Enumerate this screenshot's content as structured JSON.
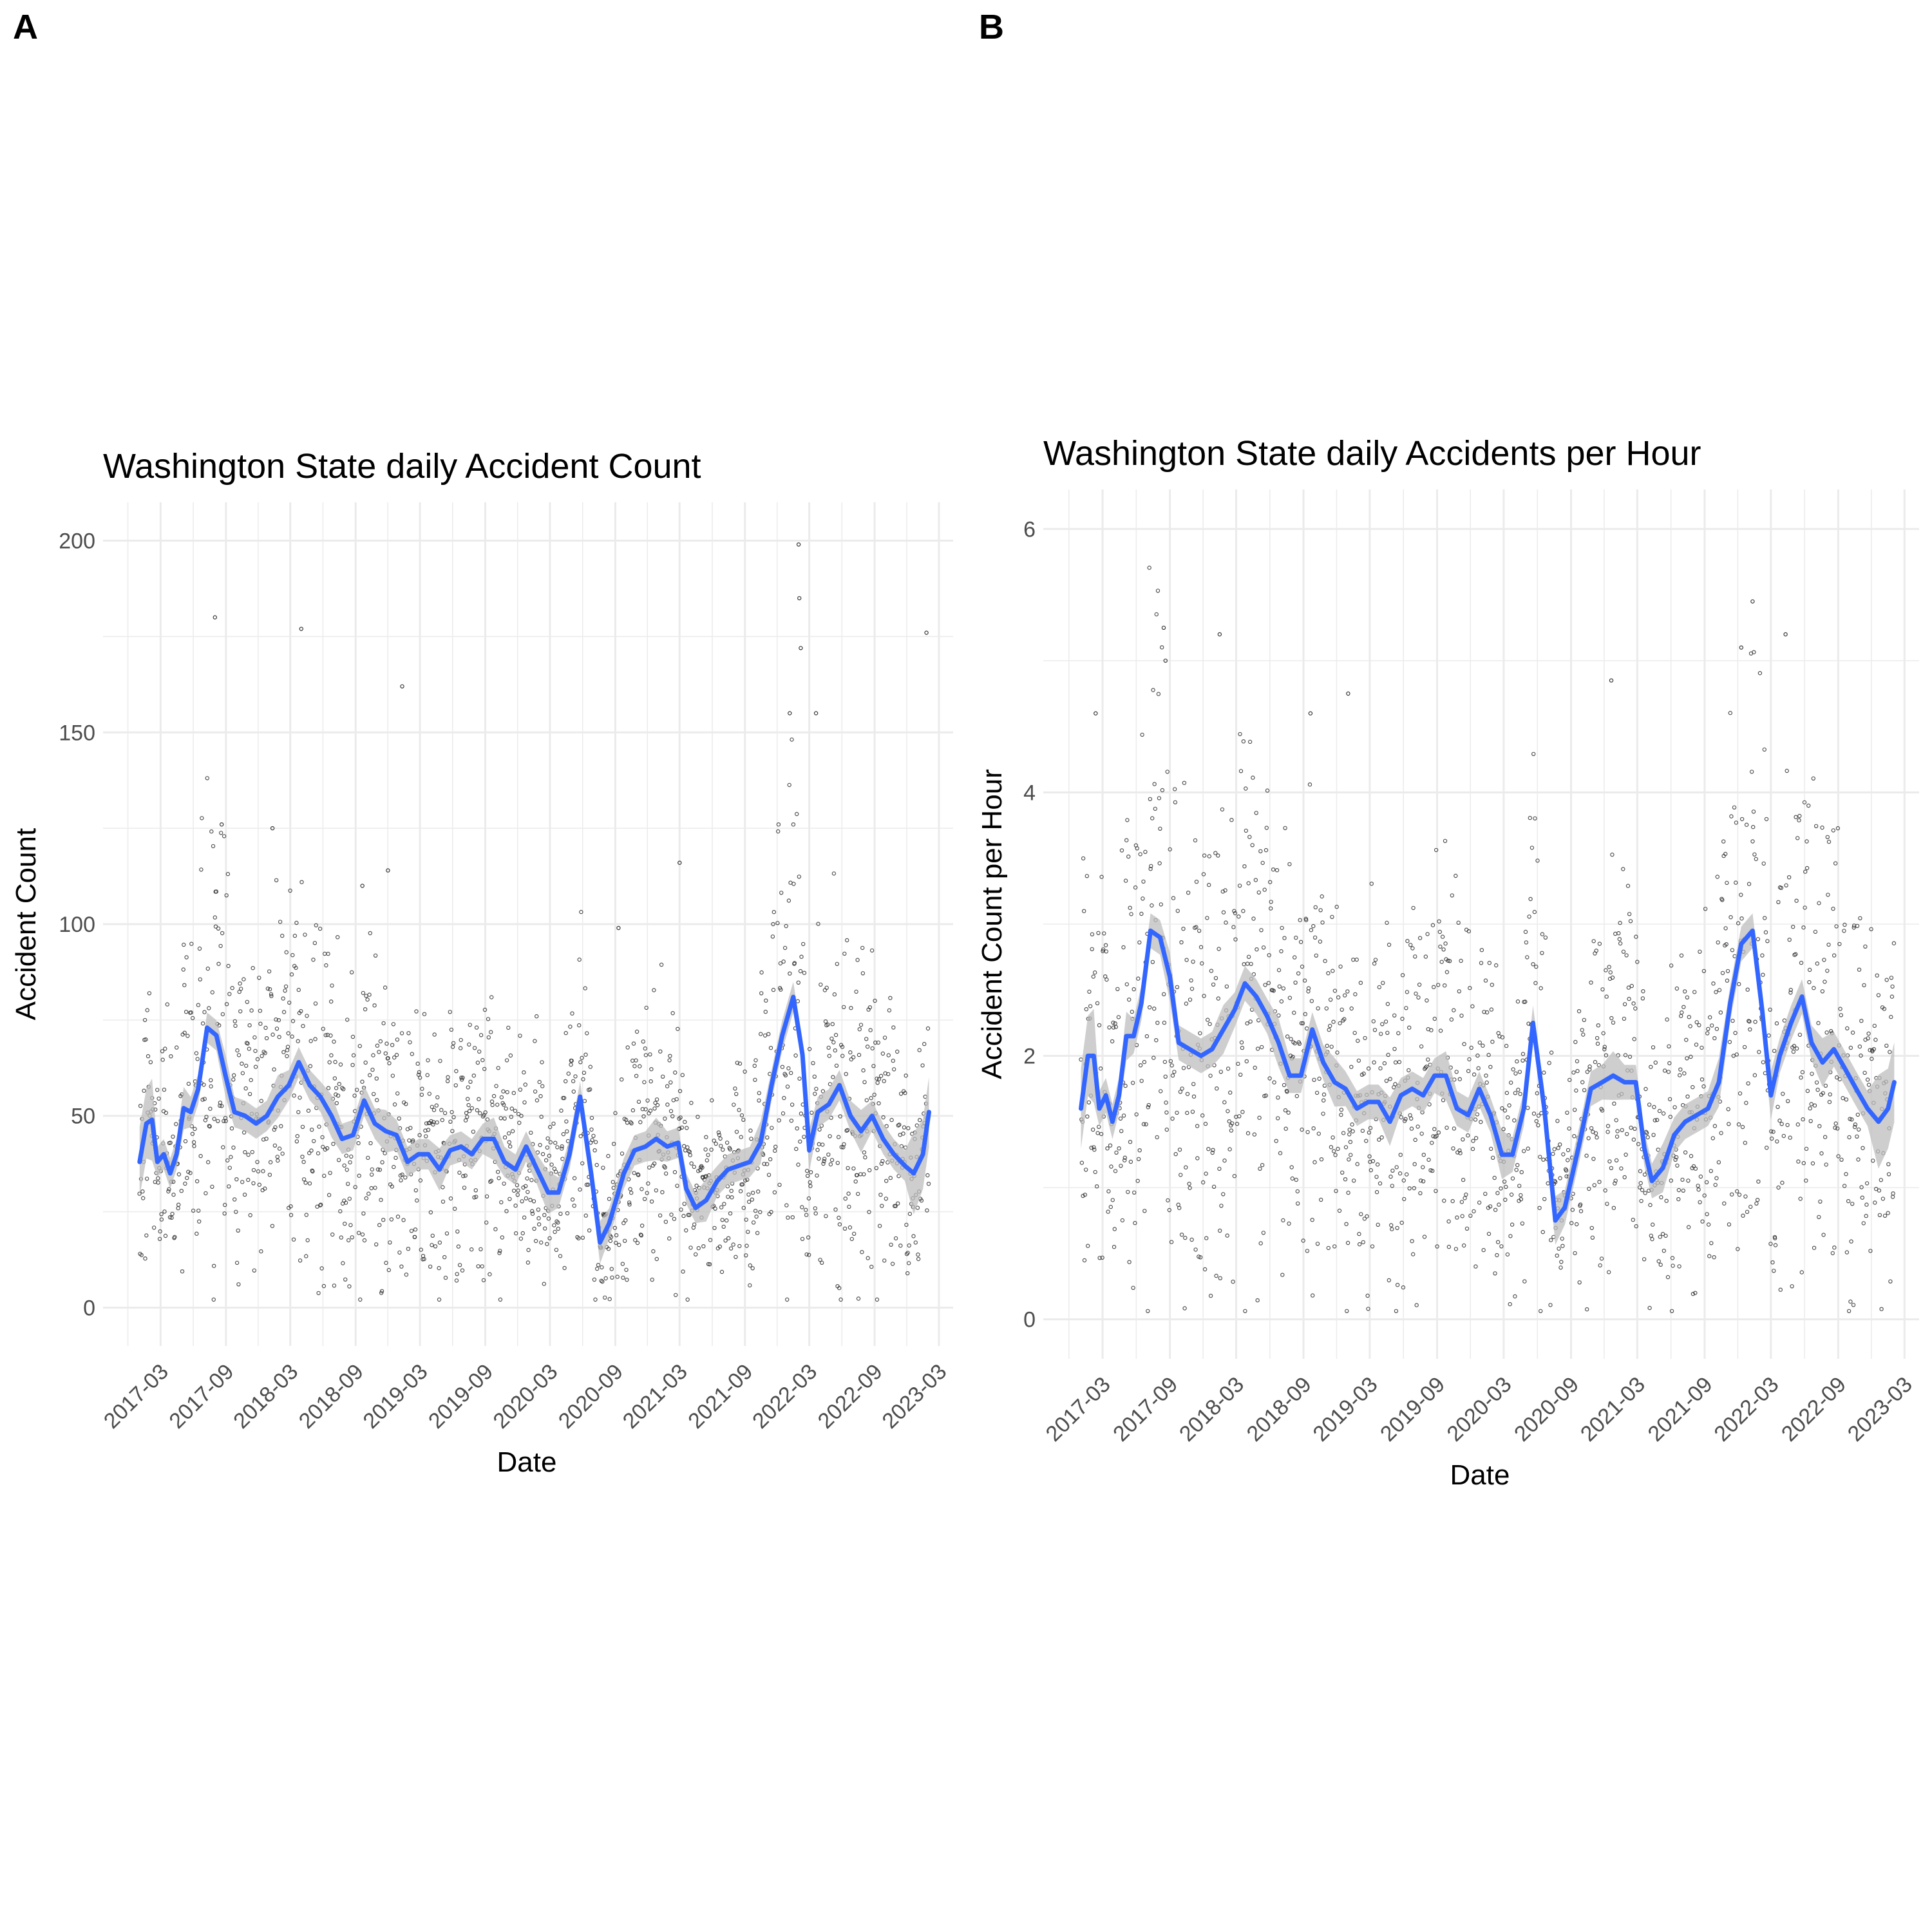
{
  "panels": {
    "a": {
      "tag": "A",
      "title": "Washington State daily Accident Count",
      "xlabel": "Date",
      "ylabel": "Accident Count"
    },
    "b": {
      "tag": "B",
      "title": "Washington State daily Accidents per Hour",
      "xlabel": "Date",
      "ylabel": "Accident Count per Hour"
    }
  },
  "colors": {
    "trend": "#3366FF",
    "ribbon": "#BEBEBE",
    "points": "#333333",
    "grid": "#EBEBEB"
  },
  "chart_data": [
    {
      "type": "line",
      "x_type": "date",
      "title": "Washington State daily Accident Count",
      "xlabel": "Date",
      "ylabel": "Accident Count",
      "xlim": [
        "2016-09-20",
        "2023-04-10"
      ],
      "ylim": [
        -10,
        210
      ],
      "x_ticks": [
        "2017-03",
        "2017-09",
        "2018-03",
        "2018-09",
        "2019-03",
        "2019-09",
        "2020-03",
        "2020-09",
        "2021-03",
        "2021-09",
        "2022-03",
        "2022-09",
        "2023-03"
      ],
      "y_ticks": [
        0,
        50,
        100,
        150,
        200
      ],
      "grid": true,
      "legend": "none",
      "series": [
        {
          "kind": "loess smooth with confidence ribbon",
          "points": [
            [
              "2017-01-01",
              38
            ],
            [
              "2017-01-20",
              48
            ],
            [
              "2017-02-05",
              49
            ],
            [
              "2017-02-20",
              38
            ],
            [
              "2017-03-10",
              40
            ],
            [
              "2017-03-28",
              35
            ],
            [
              "2017-04-15",
              40
            ],
            [
              "2017-05-05",
              52
            ],
            [
              "2017-05-25",
              51
            ],
            [
              "2017-06-15",
              57
            ],
            [
              "2017-07-10",
              73
            ],
            [
              "2017-08-05",
              71
            ],
            [
              "2017-09-01",
              60
            ],
            [
              "2017-09-25",
              51
            ],
            [
              "2017-10-25",
              50
            ],
            [
              "2017-11-25",
              48
            ],
            [
              "2017-12-25",
              50
            ],
            [
              "2018-01-25",
              55
            ],
            [
              "2018-02-25",
              58
            ],
            [
              "2018-03-25",
              64
            ],
            [
              "2018-04-25",
              58
            ],
            [
              "2018-05-25",
              55
            ],
            [
              "2018-06-25",
              50
            ],
            [
              "2018-07-25",
              44
            ],
            [
              "2018-08-25",
              45
            ],
            [
              "2018-09-25",
              54
            ],
            [
              "2018-10-25",
              48
            ],
            [
              "2018-11-25",
              46
            ],
            [
              "2018-12-25",
              45
            ],
            [
              "2019-01-25",
              38
            ],
            [
              "2019-02-25",
              40
            ],
            [
              "2019-03-25",
              40
            ],
            [
              "2019-04-25",
              36
            ],
            [
              "2019-05-25",
              41
            ],
            [
              "2019-06-25",
              42
            ],
            [
              "2019-07-25",
              40
            ],
            [
              "2019-08-25",
              44
            ],
            [
              "2019-09-25",
              44
            ],
            [
              "2019-10-25",
              38
            ],
            [
              "2019-11-25",
              36
            ],
            [
              "2019-12-25",
              42
            ],
            [
              "2020-01-25",
              36
            ],
            [
              "2020-02-25",
              30
            ],
            [
              "2020-03-25",
              30
            ],
            [
              "2020-04-25",
              40
            ],
            [
              "2020-05-25",
              55
            ],
            [
              "2020-06-25",
              35
            ],
            [
              "2020-07-20",
              17
            ],
            [
              "2020-08-15",
              22
            ],
            [
              "2020-09-25",
              35
            ],
            [
              "2020-10-25",
              41
            ],
            [
              "2020-11-25",
              42
            ],
            [
              "2020-12-25",
              44
            ],
            [
              "2021-01-25",
              42
            ],
            [
              "2021-02-25",
              43
            ],
            [
              "2021-03-20",
              31
            ],
            [
              "2021-04-15",
              26
            ],
            [
              "2021-05-15",
              28
            ],
            [
              "2021-06-15",
              33
            ],
            [
              "2021-07-15",
              36
            ],
            [
              "2021-08-15",
              37
            ],
            [
              "2021-09-15",
              38
            ],
            [
              "2021-10-15",
              43
            ],
            [
              "2021-11-15",
              58
            ],
            [
              "2021-12-15",
              71
            ],
            [
              "2022-01-15",
              81
            ],
            [
              "2022-02-10",
              66
            ],
            [
              "2022-03-01",
              41
            ],
            [
              "2022-03-25",
              51
            ],
            [
              "2022-04-25",
              53
            ],
            [
              "2022-05-25",
              58
            ],
            [
              "2022-06-25",
              50
            ],
            [
              "2022-07-25",
              46
            ],
            [
              "2022-08-25",
              50
            ],
            [
              "2022-09-25",
              44
            ],
            [
              "2022-10-25",
              40
            ],
            [
              "2022-11-25",
              37
            ],
            [
              "2022-12-20",
              35
            ],
            [
              "2023-01-15",
              40
            ],
            [
              "2023-02-01",
              51
            ]
          ]
        }
      ],
      "scatter_outliers": [
        [
          "2017-08-01",
          180
        ],
        [
          "2018-04-01",
          177
        ],
        [
          "2019-01-10",
          162
        ],
        [
          "2022-01-30",
          199
        ],
        [
          "2022-02-01",
          185
        ],
        [
          "2022-02-05",
          172
        ],
        [
          "2022-01-05",
          155
        ],
        [
          "2022-03-20",
          155
        ],
        [
          "2023-01-25",
          176
        ],
        [
          "2017-08-20",
          126
        ],
        [
          "2018-01-10",
          125
        ],
        [
          "2018-09-20",
          110
        ],
        [
          "2020-09-10",
          99
        ],
        [
          "2021-03-01",
          116
        ],
        [
          "2018-12-01",
          114
        ]
      ]
    },
    {
      "type": "line",
      "x_type": "date",
      "title": "Washington State daily Accidents per Hour",
      "xlabel": "Date",
      "ylabel": "Accident Count per Hour",
      "xlim": [
        "2016-09-20",
        "2023-04-10"
      ],
      "ylim": [
        -0.3,
        6.3
      ],
      "x_ticks": [
        "2017-03",
        "2017-09",
        "2018-03",
        "2018-09",
        "2019-03",
        "2019-09",
        "2020-03",
        "2020-09",
        "2021-03",
        "2021-09",
        "2022-03",
        "2022-09",
        "2023-03"
      ],
      "y_ticks": [
        0,
        2,
        4,
        6
      ],
      "grid": true,
      "legend": "none",
      "series": [
        {
          "kind": "loess smooth with confidence ribbon",
          "points": [
            [
              "2017-01-01",
              1.6
            ],
            [
              "2017-01-20",
              2.0
            ],
            [
              "2017-02-05",
              2.0
            ],
            [
              "2017-02-20",
              1.6
            ],
            [
              "2017-03-10",
              1.7
            ],
            [
              "2017-03-28",
              1.5
            ],
            [
              "2017-04-15",
              1.7
            ],
            [
              "2017-05-05",
              2.15
            ],
            [
              "2017-05-25",
              2.15
            ],
            [
              "2017-06-15",
              2.4
            ],
            [
              "2017-07-10",
              2.95
            ],
            [
              "2017-08-05",
              2.9
            ],
            [
              "2017-09-01",
              2.6
            ],
            [
              "2017-09-25",
              2.1
            ],
            [
              "2017-10-25",
              2.05
            ],
            [
              "2017-11-25",
              2.0
            ],
            [
              "2017-12-25",
              2.05
            ],
            [
              "2018-01-25",
              2.2
            ],
            [
              "2018-02-25",
              2.35
            ],
            [
              "2018-03-25",
              2.55
            ],
            [
              "2018-04-25",
              2.45
            ],
            [
              "2018-05-25",
              2.3
            ],
            [
              "2018-06-25",
              2.1
            ],
            [
              "2018-07-25",
              1.85
            ],
            [
              "2018-08-25",
              1.85
            ],
            [
              "2018-09-25",
              2.2
            ],
            [
              "2018-10-25",
              1.95
            ],
            [
              "2018-11-25",
              1.8
            ],
            [
              "2018-12-25",
              1.75
            ],
            [
              "2019-01-25",
              1.6
            ],
            [
              "2019-02-25",
              1.65
            ],
            [
              "2019-03-25",
              1.65
            ],
            [
              "2019-04-25",
              1.5
            ],
            [
              "2019-05-25",
              1.7
            ],
            [
              "2019-06-25",
              1.75
            ],
            [
              "2019-07-25",
              1.7
            ],
            [
              "2019-08-25",
              1.85
            ],
            [
              "2019-09-25",
              1.85
            ],
            [
              "2019-10-25",
              1.6
            ],
            [
              "2019-11-25",
              1.55
            ],
            [
              "2019-12-25",
              1.75
            ],
            [
              "2020-01-25",
              1.55
            ],
            [
              "2020-02-25",
              1.25
            ],
            [
              "2020-03-25",
              1.25
            ],
            [
              "2020-04-25",
              1.6
            ],
            [
              "2020-05-20",
              2.25
            ],
            [
              "2020-06-20",
              1.6
            ],
            [
              "2020-07-20",
              0.75
            ],
            [
              "2020-08-15",
              0.85
            ],
            [
              "2020-09-25",
              1.35
            ],
            [
              "2020-10-25",
              1.75
            ],
            [
              "2020-11-25",
              1.8
            ],
            [
              "2020-12-25",
              1.85
            ],
            [
              "2021-01-25",
              1.8
            ],
            [
              "2021-02-25",
              1.8
            ],
            [
              "2021-03-20",
              1.3
            ],
            [
              "2021-04-10",
              1.05
            ],
            [
              "2021-05-10",
              1.15
            ],
            [
              "2021-06-10",
              1.4
            ],
            [
              "2021-07-10",
              1.5
            ],
            [
              "2021-08-10",
              1.55
            ],
            [
              "2021-09-10",
              1.6
            ],
            [
              "2021-10-10",
              1.8
            ],
            [
              "2021-11-10",
              2.4
            ],
            [
              "2021-12-10",
              2.85
            ],
            [
              "2022-01-10",
              2.95
            ],
            [
              "2022-02-05",
              2.35
            ],
            [
              "2022-03-01",
              1.7
            ],
            [
              "2022-03-25",
              2.0
            ],
            [
              "2022-04-25",
              2.25
            ],
            [
              "2022-05-25",
              2.45
            ],
            [
              "2022-06-20",
              2.1
            ],
            [
              "2022-07-20",
              1.95
            ],
            [
              "2022-08-20",
              2.05
            ],
            [
              "2022-09-20",
              1.9
            ],
            [
              "2022-10-20",
              1.75
            ],
            [
              "2022-11-20",
              1.6
            ],
            [
              "2022-12-20",
              1.5
            ],
            [
              "2023-01-15",
              1.6
            ],
            [
              "2023-02-01",
              1.8
            ]
          ]
        }
      ],
      "scatter_outliers": [
        [
          "2017-08-15",
          5.25
        ],
        [
          "2017-08-20",
          5.0
        ],
        [
          "2018-01-15",
          5.2
        ],
        [
          "2021-12-10",
          5.1
        ],
        [
          "2022-01-10",
          5.45
        ],
        [
          "2022-04-10",
          5.2
        ],
        [
          "2020-12-20",
          4.85
        ],
        [
          "2019-01-01",
          4.75
        ],
        [
          "2018-09-20",
          4.6
        ],
        [
          "2017-02-10",
          4.6
        ]
      ]
    }
  ]
}
